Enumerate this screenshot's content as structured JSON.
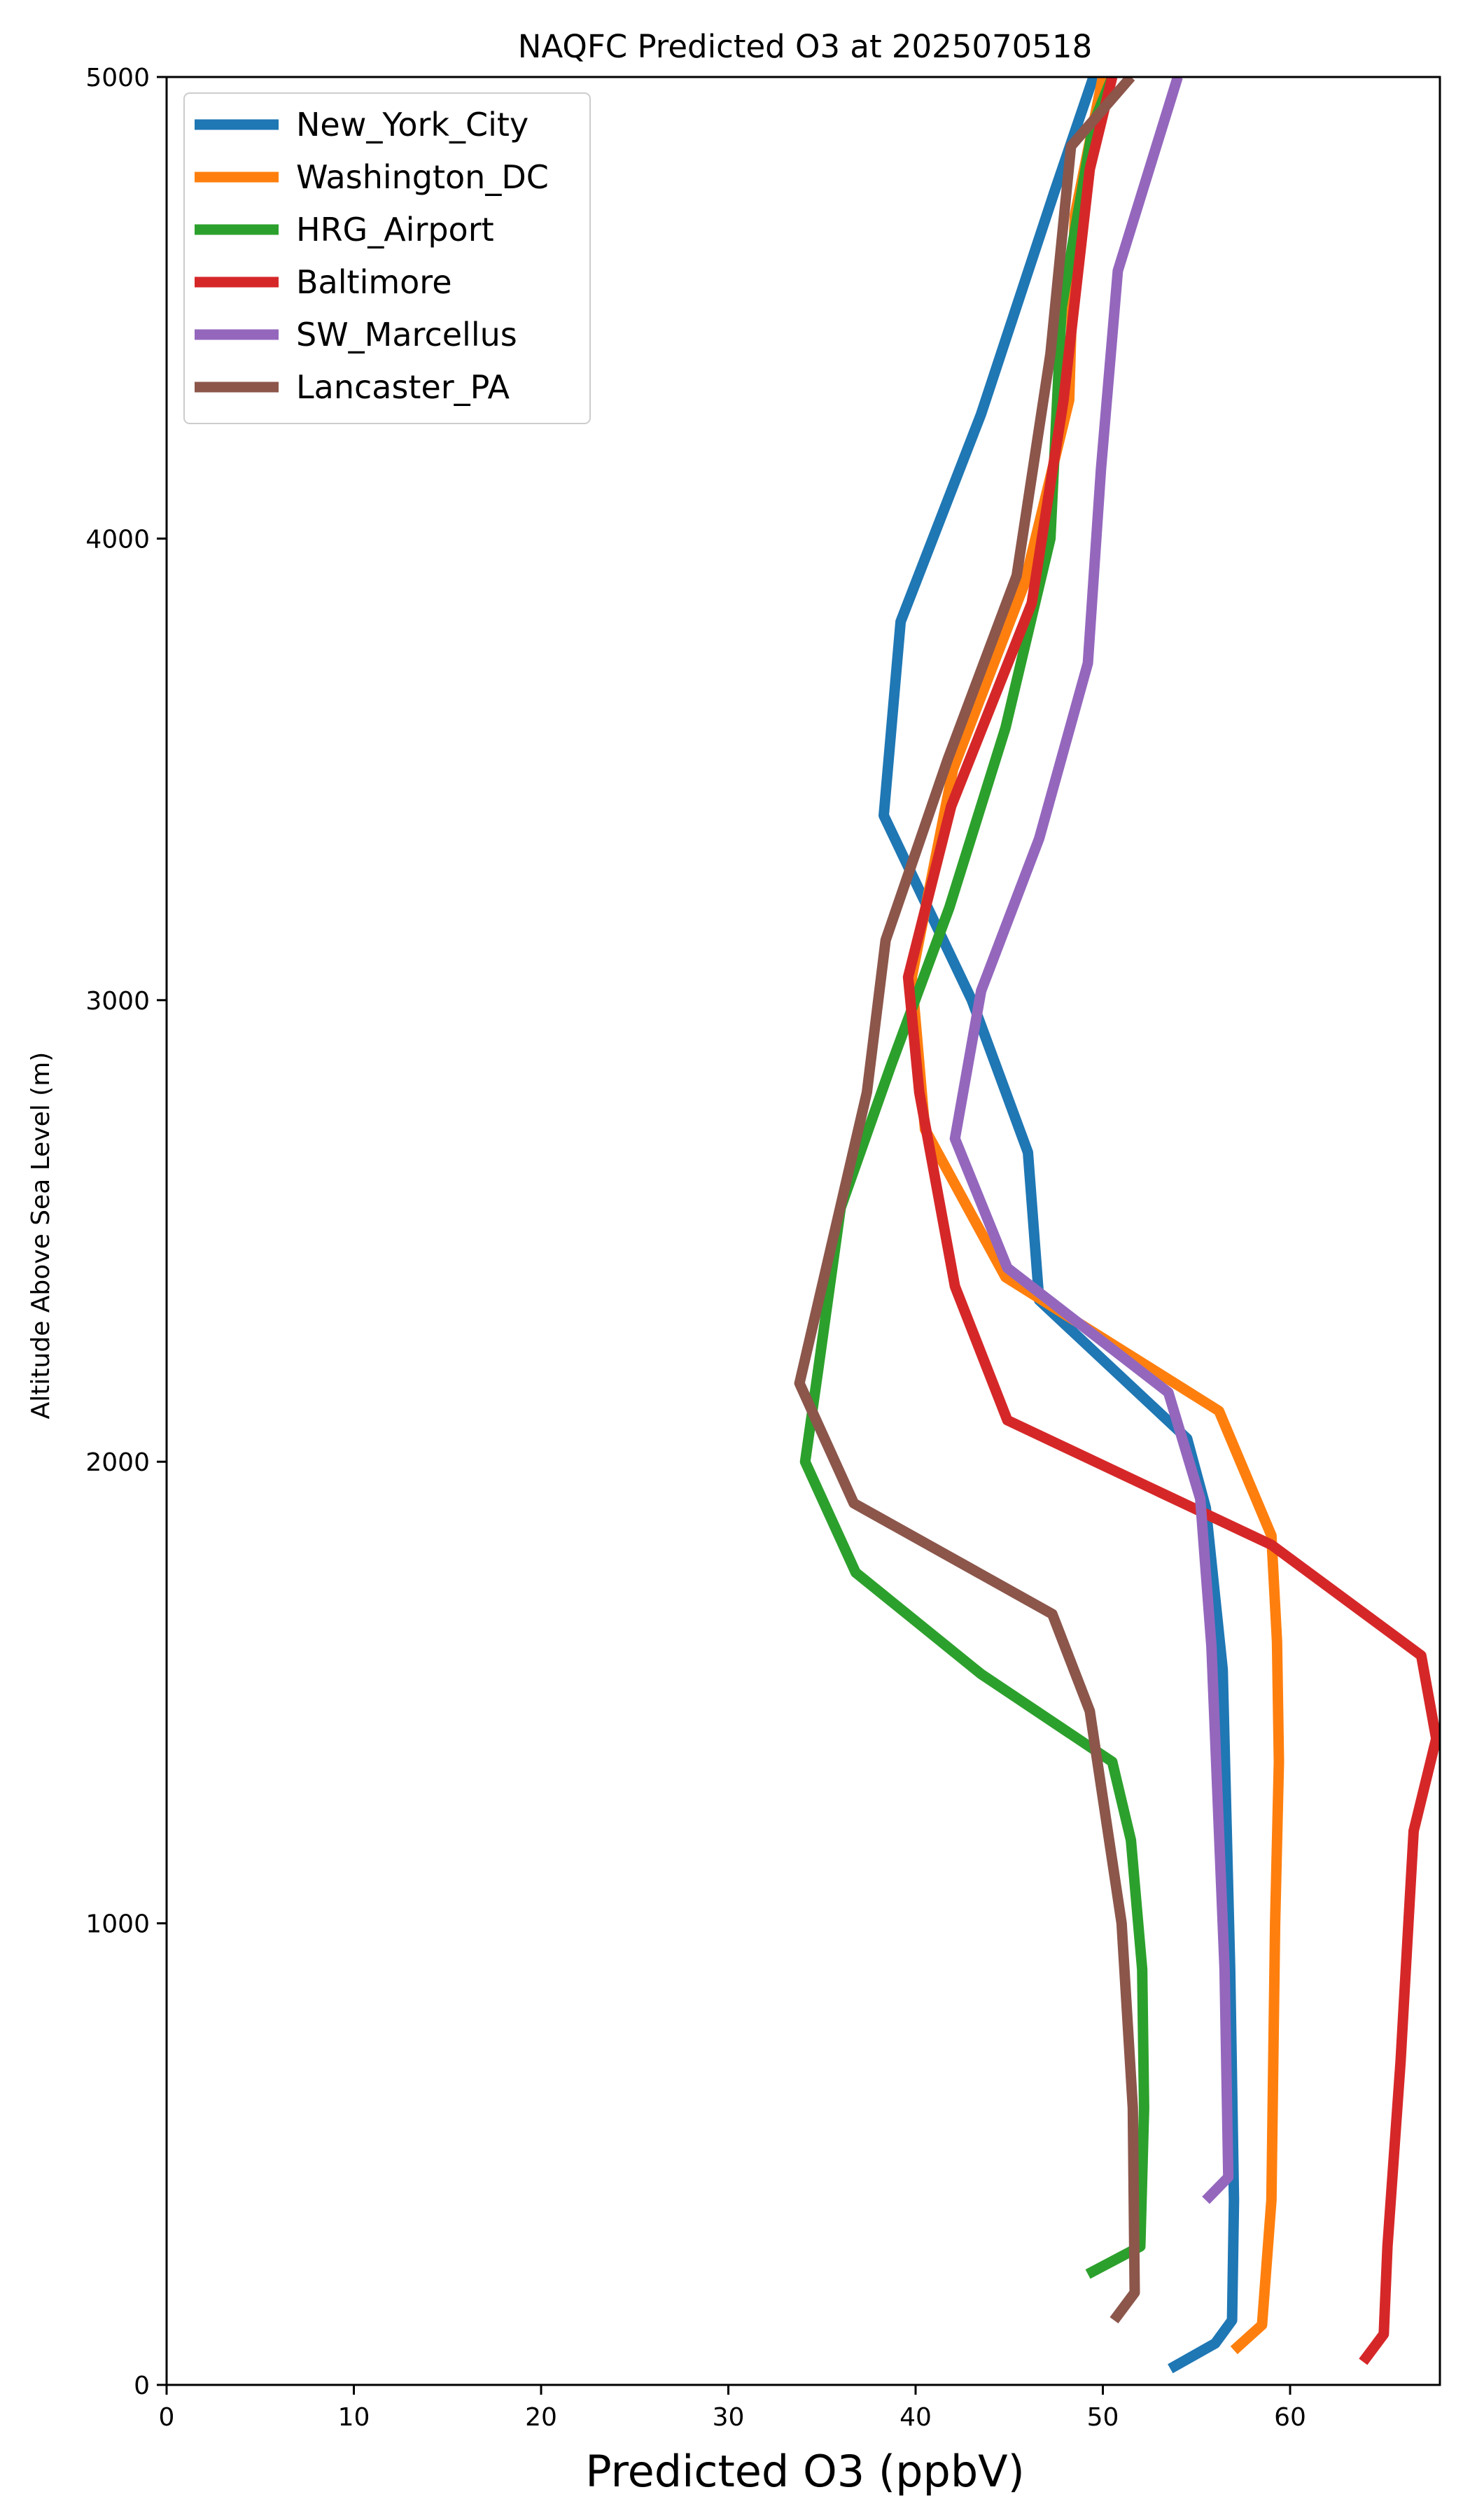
{
  "chart_data": {
    "type": "line",
    "title": "NAQFC Predicted O3 at 2025070518",
    "xlabel": "Predicted O3 (ppbV)",
    "ylabel": "Altitude Above Sea Level (m)",
    "xlim": [
      0,
      68
    ],
    "ylim": [
      0,
      5000
    ],
    "xticks": [
      0,
      10,
      20,
      30,
      40,
      50,
      60
    ],
    "yticks": [
      0,
      1000,
      2000,
      3000,
      4000,
      5000
    ],
    "grid": false,
    "legend_position": "top-left",
    "series": [
      {
        "name": "New_York_City",
        "color": "#1f77b4",
        "points": [
          [
            53.6,
            35
          ],
          [
            56,
            90
          ],
          [
            56.9,
            140
          ],
          [
            57,
            400
          ],
          [
            56.8,
            900
          ],
          [
            56.4,
            1550
          ],
          [
            55.5,
            1900
          ],
          [
            54.5,
            2050
          ],
          [
            46.6,
            2350
          ],
          [
            46,
            2670
          ],
          [
            43,
            3000
          ],
          [
            38.3,
            3400
          ],
          [
            39.2,
            3820
          ],
          [
            43.5,
            4270
          ],
          [
            47.4,
            4750
          ],
          [
            49.5,
            5000
          ]
        ]
      },
      {
        "name": "Washington_DC",
        "color": "#ff7f0e",
        "points": [
          [
            57,
            75
          ],
          [
            58.5,
            130
          ],
          [
            59,
            400
          ],
          [
            59.2,
            1000
          ],
          [
            59.4,
            1350
          ],
          [
            59.3,
            1610
          ],
          [
            59,
            1840
          ],
          [
            56.2,
            2110
          ],
          [
            44.8,
            2400
          ],
          [
            40.5,
            2720
          ],
          [
            39.8,
            3050
          ],
          [
            42,
            3500
          ],
          [
            45.8,
            3900
          ],
          [
            48.2,
            4300
          ],
          [
            48.5,
            4700
          ],
          [
            50,
            5000
          ]
        ]
      },
      {
        "name": "HRG_Airport",
        "color": "#2ca02c",
        "points": [
          [
            49.2,
            240
          ],
          [
            52,
            300
          ],
          [
            52.2,
            600
          ],
          [
            52.1,
            900
          ],
          [
            51.5,
            1180
          ],
          [
            50.5,
            1350
          ],
          [
            43.5,
            1540
          ],
          [
            36.8,
            1760
          ],
          [
            34.1,
            2000
          ],
          [
            34.8,
            2200
          ],
          [
            36,
            2550
          ],
          [
            38.7,
            2860
          ],
          [
            41.8,
            3200
          ],
          [
            44.8,
            3590
          ],
          [
            47.2,
            4000
          ],
          [
            47.8,
            4500
          ],
          [
            49.5,
            4900
          ],
          [
            50.5,
            5000
          ]
        ]
      },
      {
        "name": "Baltimore",
        "color": "#d62728",
        "points": [
          [
            63.9,
            50
          ],
          [
            65,
            110
          ],
          [
            65.2,
            300
          ],
          [
            65.9,
            700
          ],
          [
            66.6,
            1200
          ],
          [
            67.8,
            1400
          ],
          [
            67,
            1580
          ],
          [
            59,
            1820
          ],
          [
            44.9,
            2090
          ],
          [
            42.1,
            2380
          ],
          [
            40.2,
            2800
          ],
          [
            39.6,
            3050
          ],
          [
            41.9,
            3420
          ],
          [
            46.2,
            3860
          ],
          [
            47.9,
            4300
          ],
          [
            49.3,
            4800
          ],
          [
            50.5,
            5000
          ]
        ]
      },
      {
        "name": "SW_Marcellus",
        "color": "#9467bd",
        "points": [
          [
            55.5,
            400
          ],
          [
            56.7,
            450
          ],
          [
            56.5,
            900
          ],
          [
            55.8,
            1600
          ],
          [
            55.2,
            1920
          ],
          [
            53.5,
            2150
          ],
          [
            44.9,
            2420
          ],
          [
            42.1,
            2700
          ],
          [
            43.5,
            3020
          ],
          [
            46.6,
            3350
          ],
          [
            49.2,
            3730
          ],
          [
            49.9,
            4150
          ],
          [
            50.8,
            4580
          ],
          [
            54,
            5000
          ]
        ]
      },
      {
        "name": "Lancaster_PA",
        "color": "#8c564b",
        "points": [
          [
            50.6,
            140
          ],
          [
            51.7,
            200
          ],
          [
            51.6,
            600
          ],
          [
            51,
            1000
          ],
          [
            49.3,
            1460
          ],
          [
            47.3,
            1670
          ],
          [
            36.7,
            1910
          ],
          [
            33.8,
            2170
          ],
          [
            37.4,
            2800
          ],
          [
            38.4,
            3130
          ],
          [
            41.7,
            3520
          ],
          [
            45.4,
            3920
          ],
          [
            47.2,
            4400
          ],
          [
            48.3,
            4850
          ],
          [
            51.5,
            5000
          ]
        ]
      }
    ]
  }
}
